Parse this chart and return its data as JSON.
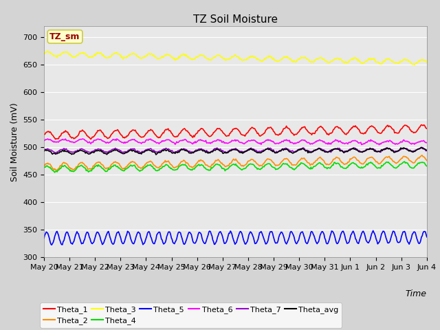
{
  "title": "TZ Soil Moisture",
  "ylabel": "Soil Moisture (mV)",
  "xlabel": "Time",
  "legend_label": "TZ_sm",
  "ylim": [
    300,
    720
  ],
  "yticks": [
    300,
    350,
    400,
    450,
    500,
    550,
    600,
    650,
    700
  ],
  "x_labels": [
    "May 20",
    "May 21",
    "May 22",
    "May 23",
    "May 24",
    "May 25",
    "May 26",
    "May 27",
    "May 28",
    "May 29",
    "May 30",
    "May 31",
    "Jun 1",
    "Jun 2",
    "Jun 3",
    "Jun 4"
  ],
  "series_order": [
    "Theta_1",
    "Theta_2",
    "Theta_3",
    "Theta_4",
    "Theta_5",
    "Theta_6",
    "Theta_7",
    "Theta_avg"
  ],
  "series": {
    "Theta_1": {
      "color": "#ff0000",
      "base": 522,
      "amp": 7,
      "freq": 1.5,
      "trend": 0.8,
      "phase": 0.0
    },
    "Theta_2": {
      "color": "#ff8c00",
      "base": 465,
      "amp": 6,
      "freq": 1.5,
      "trend": 0.9,
      "phase": 0.3
    },
    "Theta_3": {
      "color": "#ffff00",
      "base": 670,
      "amp": 4,
      "freq": 1.5,
      "trend": -1.0,
      "phase": 0.1
    },
    "Theta_4": {
      "color": "#00dd00",
      "base": 461,
      "amp": 5,
      "freq": 1.5,
      "trend": 0.5,
      "phase": 0.5
    },
    "Theta_5": {
      "color": "#0000ff",
      "base": 335,
      "amp": 11,
      "freq": 2.5,
      "trend": 0.1,
      "phase": 0.0
    },
    "Theta_6": {
      "color": "#ff00ff",
      "base": 512,
      "amp": 3,
      "freq": 1.5,
      "trend": -0.2,
      "phase": 0.2
    },
    "Theta_7": {
      "color": "#9900cc",
      "base": 494,
      "amp": 3,
      "freq": 1.5,
      "trend": 0.1,
      "phase": 0.4
    },
    "Theta_avg": {
      "color": "#000000",
      "base": 491,
      "amp": 3,
      "freq": 1.5,
      "trend": 0.3,
      "phase": 0.6
    }
  },
  "n_points": 500,
  "n_days": 15,
  "background_color": "#d4d4d4",
  "plot_bg_color": "#e8e8e8",
  "legend_box_facecolor": "#ffffcc",
  "legend_box_edgecolor": "#cccc44",
  "legend_text_color": "#990000",
  "title_fontsize": 11,
  "axis_label_fontsize": 9,
  "tick_fontsize": 8,
  "legend_fontsize": 8,
  "linewidth": 1.2
}
